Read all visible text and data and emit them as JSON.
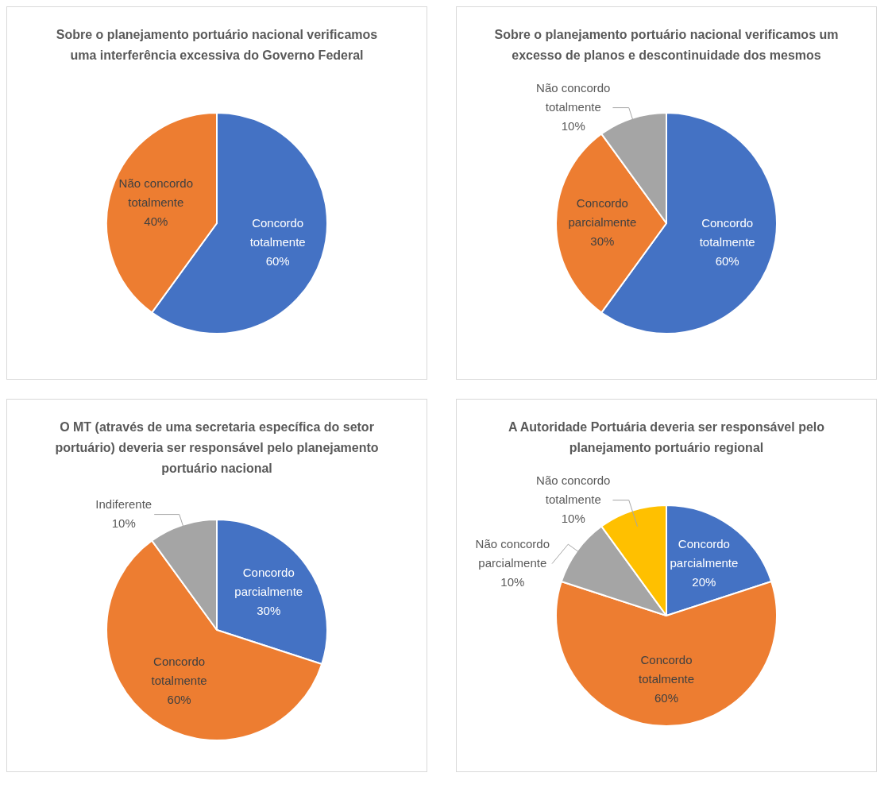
{
  "chart_data": [
    {
      "type": "pie",
      "title": "Sobre o planejamento portuário nacional verificamos uma interferência excessiva do Governo Federal",
      "categories": [
        "Concordo totalmente",
        "Não concordo totalmente"
      ],
      "values": [
        60,
        40
      ],
      "colors": [
        "#4472c4",
        "#ed7d31"
      ],
      "value_labels": [
        "60%",
        "40%"
      ]
    },
    {
      "type": "pie",
      "title": "Sobre o planejamento portuário nacional verificamos um excesso de planos e descontinuidade dos mesmos",
      "categories": [
        "Concordo totalmente",
        "Concordo parcialmente",
        "Não concordo totalmente"
      ],
      "values": [
        60,
        30,
        10
      ],
      "colors": [
        "#4472c4",
        "#ed7d31",
        "#a5a5a5"
      ],
      "value_labels": [
        "60%",
        "30%",
        "10%"
      ]
    },
    {
      "type": "pie",
      "title": "O MT (através de uma secretaria específica do setor portuário) deveria ser responsável pelo planejamento portuário nacional",
      "categories": [
        "Concordo parcialmente",
        "Concordo totalmente",
        "Indiferente"
      ],
      "values": [
        30,
        60,
        10
      ],
      "colors": [
        "#4472c4",
        "#ed7d31",
        "#a5a5a5"
      ],
      "value_labels": [
        "30%",
        "60%",
        "10%"
      ]
    },
    {
      "type": "pie",
      "title": "A Autoridade Portuária deveria ser responsável pelo planejamento portuário regional",
      "categories": [
        "Concordo parcialmente",
        "Concordo totalmente",
        "Não concordo parcialmente",
        "Não concordo totalmente"
      ],
      "values": [
        20,
        60,
        10,
        10
      ],
      "colors": [
        "#4472c4",
        "#ed7d31",
        "#a5a5a5",
        "#ffc000"
      ],
      "value_labels": [
        "20%",
        "60%",
        "10%",
        "10%"
      ]
    }
  ]
}
